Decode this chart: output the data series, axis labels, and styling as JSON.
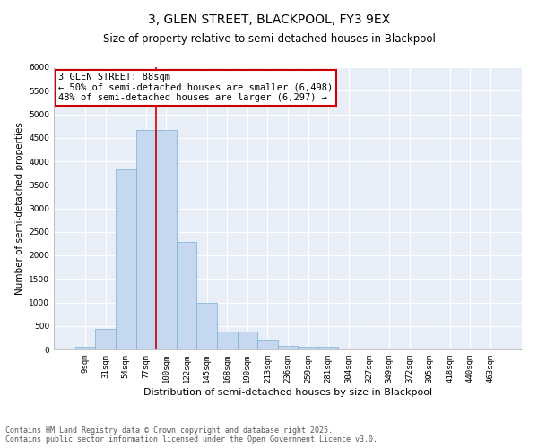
{
  "title": "3, GLEN STREET, BLACKPOOL, FY3 9EX",
  "subtitle": "Size of property relative to semi-detached houses in Blackpool",
  "xlabel": "Distribution of semi-detached houses by size in Blackpool",
  "ylabel": "Number of semi-detached properties",
  "categories": [
    "9sqm",
    "31sqm",
    "54sqm",
    "77sqm",
    "100sqm",
    "122sqm",
    "145sqm",
    "168sqm",
    "190sqm",
    "213sqm",
    "236sqm",
    "259sqm",
    "281sqm",
    "304sqm",
    "327sqm",
    "349sqm",
    "372sqm",
    "395sqm",
    "418sqm",
    "440sqm",
    "463sqm"
  ],
  "values": [
    50,
    430,
    3820,
    4660,
    4660,
    2280,
    990,
    390,
    390,
    195,
    80,
    65,
    65,
    0,
    0,
    0,
    0,
    0,
    0,
    0,
    0
  ],
  "bar_color": "#c5d8ef",
  "bar_edge_color": "#7aadd4",
  "vline_index": 4,
  "vline_color": "#cc0000",
  "ylim": [
    0,
    6000
  ],
  "yticks": [
    0,
    500,
    1000,
    1500,
    2000,
    2500,
    3000,
    3500,
    4000,
    4500,
    5000,
    5500,
    6000
  ],
  "annotation_text": "3 GLEN STREET: 88sqm\n← 50% of semi-detached houses are smaller (6,498)\n48% of semi-detached houses are larger (6,297) →",
  "annotation_box_color": "#cc0000",
  "background_color": "#e8eef8",
  "grid_color": "#ffffff",
  "footnote": "Contains HM Land Registry data © Crown copyright and database right 2025.\nContains public sector information licensed under the Open Government Licence v3.0.",
  "title_fontsize": 10,
  "subtitle_fontsize": 8.5,
  "xlabel_fontsize": 8,
  "ylabel_fontsize": 7.5,
  "tick_fontsize": 6.5,
  "annotation_fontsize": 7.5,
  "footnote_fontsize": 6
}
